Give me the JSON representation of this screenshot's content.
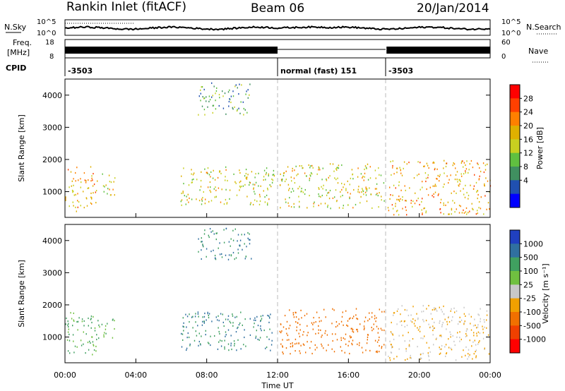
{
  "header": {
    "station": "Rankin Inlet (fitACF)",
    "beam": "Beam 06",
    "date": "20/Jan/2014"
  },
  "noise_panel": {
    "left_label": "N.Sky",
    "right_label": "N.Search",
    "ticks_left": [
      "10^5",
      "10^0"
    ],
    "ticks_right": [
      "10^5",
      "10^0"
    ]
  },
  "freq_panel": {
    "left_label_1": "Freq.",
    "left_label_2": "[MHz]",
    "right_label": "Nave",
    "ticks_left": [
      "18",
      "8"
    ],
    "ticks_right": [
      "60",
      "0"
    ]
  },
  "cpid": {
    "label": "CPID",
    "segments": [
      {
        "start": 0.0,
        "end": 12.0,
        "text": "-3503"
      },
      {
        "start": 12.0,
        "end": 18.1,
        "text": "normal (fast) 151"
      },
      {
        "start": 18.1,
        "end": 24.0,
        "text": "-3503"
      }
    ]
  },
  "power_panel": {
    "ylabel": "Slant Range [km]",
    "colorbar_label": "Power [dB]",
    "colorbar_ticks": [
      "28",
      "24",
      "20",
      "16",
      "12",
      "8",
      "4"
    ],
    "colorbar_colors": [
      "#ff0000",
      "#ff4000",
      "#ff8000",
      "#e0b000",
      "#c8d020",
      "#60c040",
      "#409060",
      "#2050b0",
      "#0000ff"
    ]
  },
  "velocity_panel": {
    "ylabel": "Slant Range [km]",
    "colorbar_label": "Velocity [m s⁻¹]",
    "colorbar_ticks": [
      "1000",
      "500",
      "100",
      "25",
      "-25",
      "-100",
      "-500",
      "-1000"
    ],
    "colorbar_colors": [
      "#2040c0",
      "#3070a0",
      "#40a060",
      "#70c040",
      "#c8c8c8",
      "#f0a000",
      "#f07000",
      "#f04000",
      "#ff0000"
    ]
  },
  "xaxis": {
    "label": "Time UT",
    "ticks": [
      "00:00",
      "04:00",
      "08:00",
      "12:00",
      "16:00",
      "20:00",
      "00:00"
    ]
  },
  "yaxis": {
    "ticks": [
      "1000",
      "2000",
      "3000",
      "4000"
    ]
  },
  "chart_data": {
    "type": "heatmap",
    "title": "Rankin Inlet (fitACF)",
    "subtitle": "Beam 06",
    "date": "20/Jan/2014",
    "xlabel": "Time UT",
    "ylabel": "Slant Range [km]",
    "xlim": [
      0,
      24
    ],
    "ylim": [
      200,
      4500
    ],
    "power_scale_db": [
      0,
      32
    ],
    "velocity_scale": [
      -1000,
      1000
    ],
    "scatter_regions": [
      {
        "t_start": 0.0,
        "t_end": 1.8,
        "r_min": 400,
        "r_max": 1800,
        "power_db": 28,
        "velocity": 100
      },
      {
        "t_start": 1.8,
        "t_end": 2.8,
        "r_min": 900,
        "r_max": 1600,
        "power_db": 24,
        "velocity": 100
      },
      {
        "t_start": 6.5,
        "t_end": 11.8,
        "r_min": 600,
        "r_max": 1800,
        "power_db": 24,
        "velocity": 500
      },
      {
        "t_start": 7.5,
        "t_end": 10.5,
        "r_min": 3400,
        "r_max": 4400,
        "power_db": 16,
        "velocity": 500
      },
      {
        "t_start": 12.1,
        "t_end": 18.0,
        "r_min": 500,
        "r_max": 1900,
        "power_db": 24,
        "velocity": -300
      },
      {
        "t_start": 18.2,
        "t_end": 24.0,
        "r_min": 300,
        "r_max": 2000,
        "power_db": 28,
        "velocity": -25
      }
    ]
  }
}
